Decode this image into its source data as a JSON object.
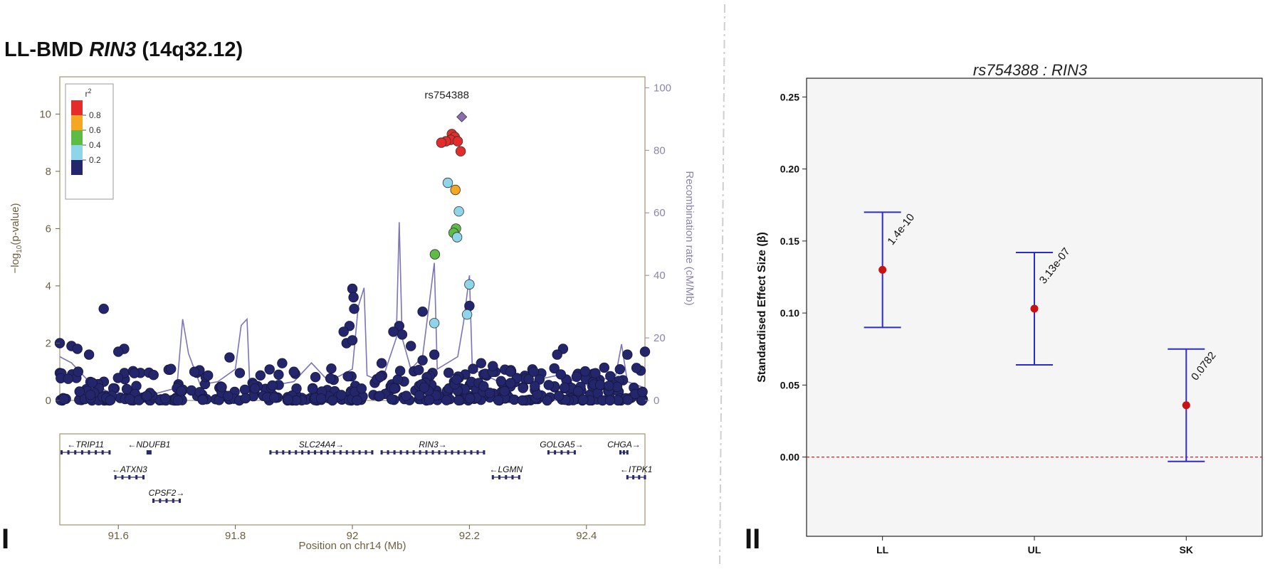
{
  "panel_labels": {
    "left": "I",
    "right": "II"
  },
  "chart_data": [
    {
      "type": "scatter",
      "title_prefix": "LL-BMD ",
      "title_gene": "RIN3",
      "title_suffix": " (14q32.12)",
      "xlabel": "Position on chr14 (Mb)",
      "ylabel": "−log10(p-value)",
      "ylabel_right": "Recombination rate (cM/Mb)",
      "xlim": [
        91.5,
        92.5
      ],
      "ylim": [
        0,
        11.3
      ],
      "ylim_right": [
        0,
        103.5
      ],
      "x_ticks": [
        "91.6",
        "91.8",
        "92",
        "92.2",
        "92.4"
      ],
      "y_ticks": [
        "0",
        "2",
        "4",
        "6",
        "8",
        "10"
      ],
      "y_ticks_right": [
        "0",
        "20",
        "40",
        "60",
        "80",
        "100"
      ],
      "lead_snp": {
        "name": "rs754388",
        "x": 92.187,
        "y": 9.9,
        "color": "#8b6db3"
      },
      "legend": {
        "title": "r",
        "title_sup": "2",
        "position": "top-left",
        "labels": [
          "0.8",
          "0.6",
          "0.4",
          "0.2"
        ],
        "colors": [
          "#e62b2b",
          "#f5a623",
          "#5dbb46",
          "#8fd5ea",
          "#24266b"
        ]
      },
      "highlight_points": [
        {
          "x": 92.17,
          "y": 9.3,
          "color": "#e62b2b"
        },
        {
          "x": 92.175,
          "y": 9.2,
          "color": "#e62b2b"
        },
        {
          "x": 92.168,
          "y": 9.1,
          "color": "#e62b2b"
        },
        {
          "x": 92.16,
          "y": 9.05,
          "color": "#e62b2b"
        },
        {
          "x": 92.152,
          "y": 9.0,
          "color": "#e62b2b"
        },
        {
          "x": 92.18,
          "y": 9.05,
          "color": "#e62b2b"
        },
        {
          "x": 92.185,
          "y": 8.7,
          "color": "#e62b2b"
        },
        {
          "x": 92.176,
          "y": 7.35,
          "color": "#f5a623"
        },
        {
          "x": 92.163,
          "y": 7.6,
          "color": "#8fd5ea"
        },
        {
          "x": 92.182,
          "y": 6.6,
          "color": "#8fd5ea"
        },
        {
          "x": 92.177,
          "y": 6.0,
          "color": "#5dbb46"
        },
        {
          "x": 92.173,
          "y": 5.85,
          "color": "#5dbb46"
        },
        {
          "x": 92.179,
          "y": 5.7,
          "color": "#8fd5ea"
        },
        {
          "x": 92.141,
          "y": 5.1,
          "color": "#5dbb46"
        },
        {
          "x": 92.2,
          "y": 4.05,
          "color": "#8fd5ea"
        },
        {
          "x": 92.14,
          "y": 2.7,
          "color": "#8fd5ea"
        },
        {
          "x": 92.196,
          "y": 3.0,
          "color": "#8fd5ea"
        }
      ],
      "background_points_color": "#24266b",
      "background_peaks": [
        {
          "x": 91.575,
          "y": 3.2
        },
        {
          "x": 92.0,
          "y": 3.9
        },
        {
          "x": 92.002,
          "y": 3.6
        },
        {
          "x": 92.003,
          "y": 3.2
        },
        {
          "x": 91.995,
          "y": 2.6
        },
        {
          "x": 92.12,
          "y": 3.1
        },
        {
          "x": 92.2,
          "y": 3.3
        },
        {
          "x": 92.08,
          "y": 2.6
        },
        {
          "x": 92.085,
          "y": 2.3
        },
        {
          "x": 91.985,
          "y": 2.4
        },
        {
          "x": 91.99,
          "y": 2.0
        },
        {
          "x": 92.0,
          "y": 2.1
        },
        {
          "x": 92.14,
          "y": 1.6
        },
        {
          "x": 92.07,
          "y": 2.4
        },
        {
          "x": 92.36,
          "y": 1.8
        },
        {
          "x": 92.35,
          "y": 1.6
        },
        {
          "x": 92.5,
          "y": 1.7
        },
        {
          "x": 92.47,
          "y": 1.6
        },
        {
          "x": 91.5,
          "y": 2.0
        },
        {
          "x": 91.52,
          "y": 1.9
        },
        {
          "x": 91.53,
          "y": 1.8
        },
        {
          "x": 91.55,
          "y": 1.6
        },
        {
          "x": 91.61,
          "y": 1.8
        },
        {
          "x": 91.6,
          "y": 1.7
        },
        {
          "x": 91.69,
          "y": 1.1
        },
        {
          "x": 91.79,
          "y": 1.5
        },
        {
          "x": 91.88,
          "y": 1.3
        },
        {
          "x": 92.22,
          "y": 1.3
        },
        {
          "x": 92.24,
          "y": 1.2
        },
        {
          "x": 92.27,
          "y": 1.0
        },
        {
          "x": 92.31,
          "y": 1.0
        },
        {
          "x": 92.12,
          "y": 1.4
        },
        {
          "x": 92.1,
          "y": 1.9
        },
        {
          "x": 92.05,
          "y": 1.3
        },
        {
          "x": 91.9,
          "y": 1.0
        },
        {
          "x": 91.73,
          "y": 1.0
        }
      ],
      "recombination_rate": [
        [
          91.5,
          14
        ],
        [
          91.52,
          12
        ],
        [
          91.55,
          6
        ],
        [
          91.58,
          3
        ],
        [
          91.62,
          2
        ],
        [
          91.66,
          2
        ],
        [
          91.7,
          4
        ],
        [
          91.71,
          26
        ],
        [
          91.72,
          15
        ],
        [
          91.74,
          5
        ],
        [
          91.77,
          6
        ],
        [
          91.8,
          10
        ],
        [
          91.81,
          24
        ],
        [
          91.82,
          26
        ],
        [
          91.825,
          3
        ],
        [
          91.87,
          5
        ],
        [
          91.9,
          6
        ],
        [
          91.93,
          12
        ],
        [
          91.96,
          6
        ],
        [
          92.0,
          10
        ],
        [
          92.01,
          30
        ],
        [
          92.02,
          36
        ],
        [
          92.025,
          8
        ],
        [
          92.05,
          6
        ],
        [
          92.075,
          20
        ],
        [
          92.08,
          57
        ],
        [
          92.085,
          20
        ],
        [
          92.1,
          10
        ],
        [
          92.12,
          14
        ],
        [
          92.14,
          44
        ],
        [
          92.145,
          10
        ],
        [
          92.18,
          14
        ],
        [
          92.19,
          25
        ],
        [
          92.2,
          40
        ],
        [
          92.205,
          10
        ],
        [
          92.25,
          6
        ],
        [
          92.3,
          6
        ],
        [
          92.35,
          8
        ],
        [
          92.4,
          5
        ],
        [
          92.45,
          8
        ],
        [
          92.46,
          18
        ],
        [
          92.47,
          6
        ],
        [
          92.5,
          4
        ]
      ],
      "genes": [
        {
          "name": "TRIP11",
          "arrow": "left",
          "x0": 91.503,
          "x1": 91.585,
          "row": 0
        },
        {
          "name": "NDUFB1",
          "arrow": "left",
          "x0": 91.65,
          "x1": 91.655,
          "row": 0
        },
        {
          "name": "SLC24A4",
          "arrow": "right",
          "x0": 91.86,
          "x1": 92.034,
          "row": 0
        },
        {
          "name": "RIN3",
          "arrow": "right",
          "x0": 92.05,
          "x1": 92.225,
          "row": 0
        },
        {
          "name": "GOLGA5",
          "arrow": "right",
          "x0": 92.335,
          "x1": 92.38,
          "row": 0
        },
        {
          "name": "CHGA",
          "arrow": "right",
          "x0": 92.458,
          "x1": 92.47,
          "row": 0
        },
        {
          "name": "ATXN3",
          "arrow": "left",
          "x0": 91.595,
          "x1": 91.643,
          "row": 1
        },
        {
          "name": "LGMN",
          "arrow": "left",
          "x0": 92.24,
          "x1": 92.285,
          "row": 1
        },
        {
          "name": "ITPK1",
          "arrow": "left",
          "x0": 92.47,
          "x1": 92.5,
          "row": 1
        },
        {
          "name": "CPSF2",
          "arrow": "right",
          "x0": 91.66,
          "x1": 91.705,
          "row": 2
        }
      ]
    },
    {
      "type": "errorbar",
      "title": "rs754388 : RIN3",
      "xlabel": "",
      "ylabel": "Standardised Effect Size (β)",
      "ylim": [
        -0.055,
        0.263
      ],
      "y_ticks": [
        "0.00",
        "0.05",
        "0.10",
        "0.15",
        "0.20",
        "0.25"
      ],
      "categories": [
        "LL",
        "UL",
        "SK"
      ],
      "estimates": [
        0.13,
        0.103,
        0.036
      ],
      "lower": [
        0.09,
        0.064,
        -0.003
      ],
      "upper": [
        0.17,
        0.142,
        0.075
      ],
      "pvalues": [
        "1.4e-10",
        "3.13e-07",
        "0.0782"
      ],
      "reference_line": 0,
      "colors": {
        "point": "#cc1111",
        "bar": "#2b2bd6",
        "ref": "#cc2222",
        "panel": "#f5f5f5"
      },
      "grid": false
    }
  ]
}
